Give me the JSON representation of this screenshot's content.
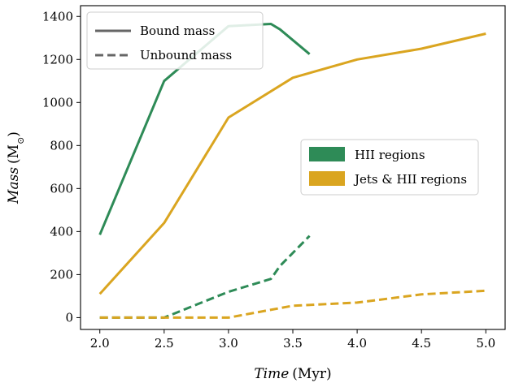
{
  "chart_data": {
    "type": "line",
    "xlabel_italic": "Time",
    "xlabel_unit": "(Myr)",
    "ylabel_italic": "Mass",
    "ylabel_unit_main": "(M",
    "ylabel_unit_sub": "⊙",
    "ylabel_unit_close": ")",
    "xlim": [
      1.85,
      5.15
    ],
    "ylim": [
      -55,
      1450
    ],
    "xticks": [
      2.0,
      2.5,
      3.0,
      3.5,
      4.0,
      4.5,
      5.0
    ],
    "xtick_labels": [
      "2.0",
      "2.5",
      "3.0",
      "3.5",
      "4.0",
      "4.5",
      "5.0"
    ],
    "yticks": [
      0,
      200,
      400,
      600,
      800,
      1000,
      1200,
      1400
    ],
    "ytick_labels": [
      "0",
      "200",
      "400",
      "600",
      "800",
      "1000",
      "1200",
      "1400"
    ],
    "grid": false,
    "series": [
      {
        "name": "HII regions",
        "color": "#2e8b57",
        "bound": {
          "x": [
            2.0,
            2.5,
            3.0,
            3.33,
            3.4,
            3.63
          ],
          "y": [
            385,
            1100,
            1355,
            1365,
            1340,
            1225
          ]
        },
        "unbound": {
          "x": [
            2.0,
            2.5,
            3.0,
            3.33,
            3.4,
            3.63
          ],
          "y": [
            0,
            0,
            120,
            180,
            240,
            380
          ]
        }
      },
      {
        "name": "Jets & HII regions",
        "color": "#daa520",
        "bound": {
          "x": [
            2.0,
            2.5,
            3.0,
            3.5,
            4.0,
            4.5,
            5.0
          ],
          "y": [
            110,
            440,
            930,
            1115,
            1200,
            1250,
            1320
          ]
        },
        "unbound": {
          "x": [
            2.0,
            2.5,
            3.0,
            3.5,
            4.0,
            4.5,
            5.0
          ],
          "y": [
            0,
            0,
            0,
            55,
            70,
            108,
            125
          ]
        }
      }
    ],
    "style_legend": {
      "position": "top-left",
      "entries": [
        {
          "label": "Bound mass",
          "linestyle": "solid",
          "color": "#666666"
        },
        {
          "label": "Unbound mass",
          "linestyle": "dashed",
          "color": "#666666"
        }
      ]
    },
    "color_legend": {
      "position": "center-right",
      "entries": [
        {
          "label": "HII regions",
          "color": "#2e8b57"
        },
        {
          "label": "Jets & HII regions",
          "color": "#daa520"
        }
      ]
    }
  }
}
